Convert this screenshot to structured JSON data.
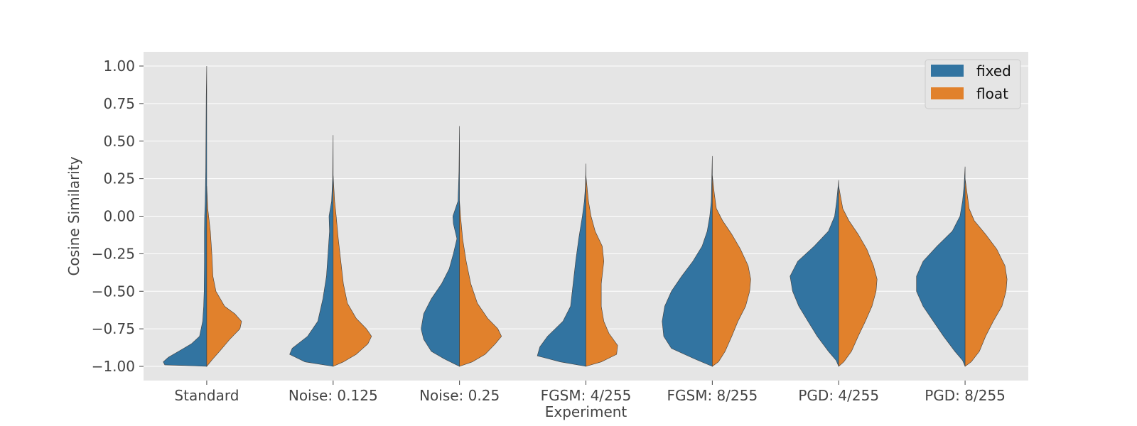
{
  "chart_data": {
    "type": "violin",
    "split": true,
    "xlabel": "Experiment",
    "ylabel": "Cosine Similarity",
    "ylim": [
      -1.0,
      1.0
    ],
    "yticks": [
      -1.0,
      -0.75,
      -0.5,
      -0.25,
      0.0,
      0.25,
      0.5,
      0.75,
      1.0
    ],
    "ytick_labels": [
      "−1.00",
      "−0.75",
      "−0.50",
      "−0.25",
      "0.00",
      "0.25",
      "0.50",
      "0.75",
      "1.00"
    ],
    "grid": true,
    "legend_position": "top-right",
    "colors": {
      "fixed": "#3274a1",
      "float": "#e1812c",
      "background": "#e5e5e5",
      "grid": "#ffffff"
    },
    "categories": [
      "Standard",
      "Noise: 0.125",
      "Noise: 0.25",
      "FGSM: 4/255",
      "FGSM: 8/255",
      "PGD: 4/255",
      "PGD: 8/255"
    ],
    "series": [
      {
        "name": "fixed",
        "violins": [
          {
            "min": -1.0,
            "max": 1.0,
            "density": [
              [
                -1.0,
                0.0
              ],
              [
                -0.99,
                0.82
              ],
              [
                -0.97,
                0.85
              ],
              [
                -0.94,
                0.75
              ],
              [
                -0.9,
                0.55
              ],
              [
                -0.85,
                0.3
              ],
              [
                -0.8,
                0.14
              ],
              [
                -0.7,
                0.08
              ],
              [
                -0.6,
                0.06
              ],
              [
                -0.5,
                0.05
              ],
              [
                -0.3,
                0.045
              ],
              [
                -0.1,
                0.045
              ],
              [
                0.0,
                0.04
              ],
              [
                0.1,
                0.03
              ],
              [
                0.3,
                0.02
              ],
              [
                0.5,
                0.015
              ],
              [
                0.8,
                0.01
              ],
              [
                1.0,
                0.0
              ]
            ]
          },
          {
            "min": -1.0,
            "max": 0.54,
            "density": [
              [
                -1.0,
                0.0
              ],
              [
                -0.97,
                0.55
              ],
              [
                -0.92,
                0.85
              ],
              [
                -0.88,
                0.8
              ],
              [
                -0.8,
                0.5
              ],
              [
                -0.7,
                0.3
              ],
              [
                -0.55,
                0.2
              ],
              [
                -0.4,
                0.13
              ],
              [
                -0.25,
                0.1
              ],
              [
                -0.1,
                0.07
              ],
              [
                0.0,
                0.08
              ],
              [
                0.1,
                0.03
              ],
              [
                0.25,
                0.01
              ],
              [
                0.54,
                0.0
              ]
            ]
          },
          {
            "min": -1.0,
            "max": 0.6,
            "density": [
              [
                -1.0,
                0.0
              ],
              [
                -0.98,
                0.12
              ],
              [
                -0.95,
                0.3
              ],
              [
                -0.9,
                0.55
              ],
              [
                -0.82,
                0.7
              ],
              [
                -0.75,
                0.75
              ],
              [
                -0.65,
                0.7
              ],
              [
                -0.55,
                0.55
              ],
              [
                -0.45,
                0.35
              ],
              [
                -0.35,
                0.2
              ],
              [
                -0.25,
                0.12
              ],
              [
                -0.15,
                0.05
              ],
              [
                -0.05,
                0.12
              ],
              [
                0.0,
                0.13
              ],
              [
                0.05,
                0.08
              ],
              [
                0.1,
                0.03
              ],
              [
                0.3,
                0.01
              ],
              [
                0.6,
                0.0
              ]
            ]
          },
          {
            "min": -1.0,
            "max": 0.35,
            "density": [
              [
                -1.0,
                0.0
              ],
              [
                -0.97,
                0.5
              ],
              [
                -0.93,
                0.95
              ],
              [
                -0.87,
                0.9
              ],
              [
                -0.8,
                0.75
              ],
              [
                -0.7,
                0.45
              ],
              [
                -0.6,
                0.3
              ],
              [
                -0.45,
                0.25
              ],
              [
                -0.3,
                0.2
              ],
              [
                -0.15,
                0.14
              ],
              [
                0.0,
                0.07
              ],
              [
                0.1,
                0.03
              ],
              [
                0.2,
                0.01
              ],
              [
                0.35,
                0.0
              ]
            ]
          },
          {
            "min": -1.0,
            "max": 0.4,
            "density": [
              [
                -1.0,
                0.0
              ],
              [
                -0.95,
                0.35
              ],
              [
                -0.88,
                0.8
              ],
              [
                -0.8,
                0.95
              ],
              [
                -0.7,
                0.98
              ],
              [
                -0.6,
                0.93
              ],
              [
                -0.5,
                0.8
              ],
              [
                -0.4,
                0.6
              ],
              [
                -0.3,
                0.38
              ],
              [
                -0.2,
                0.2
              ],
              [
                -0.1,
                0.1
              ],
              [
                0.0,
                0.05
              ],
              [
                0.1,
                0.02
              ],
              [
                0.25,
                0.01
              ],
              [
                0.4,
                0.0
              ]
            ]
          },
          {
            "min": -1.0,
            "max": 0.24,
            "density": [
              [
                -1.0,
                0.0
              ],
              [
                -0.96,
                0.05
              ],
              [
                -0.9,
                0.2
              ],
              [
                -0.8,
                0.42
              ],
              [
                -0.7,
                0.6
              ],
              [
                -0.6,
                0.78
              ],
              [
                -0.5,
                0.9
              ],
              [
                -0.4,
                0.95
              ],
              [
                -0.3,
                0.8
              ],
              [
                -0.2,
                0.48
              ],
              [
                -0.1,
                0.2
              ],
              [
                0.0,
                0.08
              ],
              [
                0.1,
                0.04
              ],
              [
                0.24,
                0.0
              ]
            ]
          },
          {
            "min": -1.0,
            "max": 0.33,
            "density": [
              [
                -1.0,
                0.0
              ],
              [
                -0.96,
                0.05
              ],
              [
                -0.9,
                0.2
              ],
              [
                -0.8,
                0.42
              ],
              [
                -0.7,
                0.62
              ],
              [
                -0.6,
                0.82
              ],
              [
                -0.5,
                0.95
              ],
              [
                -0.4,
                0.95
              ],
              [
                -0.3,
                0.82
              ],
              [
                -0.2,
                0.55
              ],
              [
                -0.1,
                0.25
              ],
              [
                0.0,
                0.1
              ],
              [
                0.1,
                0.05
              ],
              [
                0.2,
                0.02
              ],
              [
                0.33,
                0.0
              ]
            ]
          }
        ]
      },
      {
        "name": "float",
        "violins": [
          {
            "min": -1.0,
            "max": 0.2,
            "density": [
              [
                -1.0,
                0.0
              ],
              [
                -0.95,
                0.12
              ],
              [
                -0.9,
                0.25
              ],
              [
                -0.82,
                0.45
              ],
              [
                -0.75,
                0.65
              ],
              [
                -0.7,
                0.68
              ],
              [
                -0.65,
                0.55
              ],
              [
                -0.6,
                0.35
              ],
              [
                -0.5,
                0.18
              ],
              [
                -0.4,
                0.12
              ],
              [
                -0.25,
                0.1
              ],
              [
                -0.1,
                0.07
              ],
              [
                0.05,
                0.02
              ],
              [
                0.2,
                0.0
              ]
            ]
          },
          {
            "min": -1.0,
            "max": 0.27,
            "density": [
              [
                -1.0,
                0.0
              ],
              [
                -0.97,
                0.2
              ],
              [
                -0.92,
                0.45
              ],
              [
                -0.85,
                0.68
              ],
              [
                -0.8,
                0.75
              ],
              [
                -0.75,
                0.65
              ],
              [
                -0.68,
                0.45
              ],
              [
                -0.58,
                0.28
              ],
              [
                -0.45,
                0.2
              ],
              [
                -0.3,
                0.15
              ],
              [
                -0.15,
                0.1
              ],
              [
                0.0,
                0.06
              ],
              [
                0.1,
                0.03
              ],
              [
                0.27,
                0.0
              ]
            ]
          },
          {
            "min": -1.0,
            "max": 0.1,
            "density": [
              [
                -1.0,
                0.0
              ],
              [
                -0.97,
                0.25
              ],
              [
                -0.92,
                0.5
              ],
              [
                -0.85,
                0.7
              ],
              [
                -0.8,
                0.82
              ],
              [
                -0.75,
                0.75
              ],
              [
                -0.68,
                0.55
              ],
              [
                -0.58,
                0.35
              ],
              [
                -0.45,
                0.22
              ],
              [
                -0.3,
                0.13
              ],
              [
                -0.15,
                0.06
              ],
              [
                0.0,
                0.02
              ],
              [
                0.1,
                0.0
              ]
            ]
          },
          {
            "min": -1.0,
            "max": 0.27,
            "density": [
              [
                -1.0,
                0.0
              ],
              [
                -0.97,
                0.3
              ],
              [
                -0.92,
                0.6
              ],
              [
                -0.86,
                0.62
              ],
              [
                -0.78,
                0.45
              ],
              [
                -0.7,
                0.35
              ],
              [
                -0.6,
                0.3
              ],
              [
                -0.45,
                0.3
              ],
              [
                -0.3,
                0.35
              ],
              [
                -0.2,
                0.32
              ],
              [
                -0.1,
                0.18
              ],
              [
                0.0,
                0.1
              ],
              [
                0.1,
                0.05
              ],
              [
                0.27,
                0.0
              ]
            ]
          },
          {
            "min": -1.0,
            "max": 0.27,
            "density": [
              [
                -1.0,
                0.0
              ],
              [
                -0.97,
                0.12
              ],
              [
                -0.9,
                0.25
              ],
              [
                -0.8,
                0.38
              ],
              [
                -0.7,
                0.5
              ],
              [
                -0.6,
                0.65
              ],
              [
                -0.5,
                0.73
              ],
              [
                -0.42,
                0.75
              ],
              [
                -0.33,
                0.7
              ],
              [
                -0.22,
                0.55
              ],
              [
                -0.12,
                0.38
              ],
              [
                -0.03,
                0.2
              ],
              [
                0.05,
                0.08
              ],
              [
                0.15,
                0.04
              ],
              [
                0.27,
                0.0
              ]
            ]
          },
          {
            "min": -1.0,
            "max": 0.2,
            "density": [
              [
                -1.0,
                0.0
              ],
              [
                -0.97,
                0.1
              ],
              [
                -0.9,
                0.25
              ],
              [
                -0.8,
                0.38
              ],
              [
                -0.7,
                0.52
              ],
              [
                -0.6,
                0.65
              ],
              [
                -0.5,
                0.73
              ],
              [
                -0.42,
                0.75
              ],
              [
                -0.33,
                0.68
              ],
              [
                -0.22,
                0.55
              ],
              [
                -0.12,
                0.38
              ],
              [
                -0.03,
                0.2
              ],
              [
                0.05,
                0.08
              ],
              [
                0.2,
                0.0
              ]
            ]
          },
          {
            "min": -1.0,
            "max": 0.25,
            "density": [
              [
                -1.0,
                0.0
              ],
              [
                -0.97,
                0.12
              ],
              [
                -0.9,
                0.28
              ],
              [
                -0.8,
                0.4
              ],
              [
                -0.7,
                0.55
              ],
              [
                -0.6,
                0.72
              ],
              [
                -0.5,
                0.8
              ],
              [
                -0.42,
                0.82
              ],
              [
                -0.33,
                0.78
              ],
              [
                -0.22,
                0.62
              ],
              [
                -0.12,
                0.4
              ],
              [
                -0.03,
                0.18
              ],
              [
                0.05,
                0.08
              ],
              [
                0.25,
                0.0
              ]
            ]
          }
        ]
      }
    ]
  }
}
